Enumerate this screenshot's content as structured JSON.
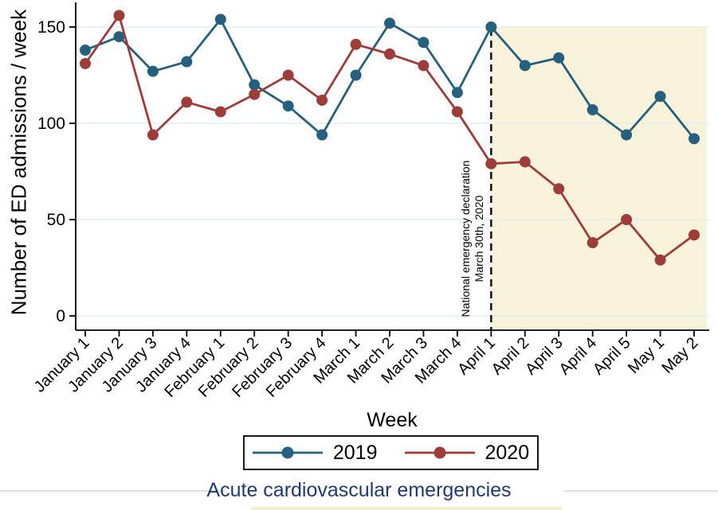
{
  "colors": {
    "axis": "#000000",
    "gridline": "#e4eef1",
    "caption": "#1e3a6e",
    "legend_border": "#1a1a1a"
  },
  "chart_data": {
    "type": "line",
    "title": "Acute cardiovascular emergencies",
    "xlabel": "Week",
    "ylabel": "Number of ED admissions / week",
    "ylim": [
      0,
      160
    ],
    "yticks": [
      0,
      50,
      100,
      150
    ],
    "grid": "horizontal",
    "legend_position": "bottom",
    "categories": [
      "January 1",
      "January 2",
      "January 3",
      "January 4",
      "February 1",
      "February 2",
      "February 3",
      "February 4",
      "March 1",
      "March 2",
      "March 3",
      "March 4",
      "April 1",
      "April 2",
      "April 3",
      "April 4",
      "April 5",
      "May 1",
      "May 2"
    ],
    "series": [
      {
        "name": "2019",
        "color": "#26607f",
        "values": [
          138,
          145,
          127,
          132,
          154,
          120,
          109,
          94,
          125,
          152,
          142,
          116,
          150,
          130,
          134,
          107,
          94,
          114,
          92
        ]
      },
      {
        "name": "2020",
        "color": "#9e3c3a",
        "values": [
          131,
          156,
          94,
          111,
          106,
          115,
          125,
          112,
          141,
          136,
          130,
          106,
          79,
          80,
          66,
          38,
          50,
          29,
          42
        ]
      }
    ],
    "annotations": {
      "vline": {
        "x_category": "April 1",
        "style": "dashed",
        "color": "#1a1a1a",
        "label_lines": [
          "National emergency declaration",
          "March 30th, 2020"
        ],
        "label_color": "#9e3c3a"
      },
      "shaded_region": {
        "from_category": "April 1",
        "to": "right-edge",
        "top_value": 150,
        "color": "#faf3dc"
      }
    }
  }
}
